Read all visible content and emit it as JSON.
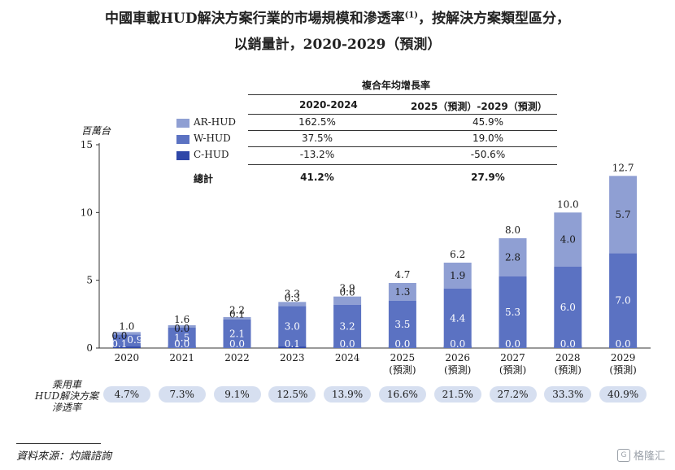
{
  "title_line1": "中國車載HUD解決方案行業的市場規模和滲透率",
  "title_sup": "(1)",
  "title_line1_suffix": "，按解決方案類型區分，",
  "title_line2": "以銷量計，2020-2029（預測）",
  "cagr_table": {
    "header": "複合年均增長率",
    "col1": "2020-2024",
    "col2": "2025（預測）-2029（預測）",
    "rows": [
      {
        "label": "AR-HUD",
        "c1": "162.5%",
        "c2": "45.9%"
      },
      {
        "label": "W-HUD",
        "c1": "37.5%",
        "c2": "19.0%"
      },
      {
        "label": "C-HUD",
        "c1": "-13.2%",
        "c2": "-50.6%"
      },
      {
        "label": "總計",
        "c1": "41.2%",
        "c2": "27.9%"
      }
    ]
  },
  "colors": {
    "ar": "#8f9fd3",
    "w": "#5b72c2",
    "c": "#2f47a8",
    "pill": "#d6dff0"
  },
  "penetration_label": "乘用車\nHUD解決方案\n滲透率",
  "penetration": [
    "4.7%",
    "7.3%",
    "9.1%",
    "12.5%",
    "13.9%",
    "16.6%",
    "21.5%",
    "27.2%",
    "33.3%",
    "40.9%"
  ],
  "source": "資料來源：灼識諮詢",
  "watermark": "格隆汇",
  "chart_data": {
    "type": "bar",
    "stacked": true,
    "ylabel": "百萬台",
    "ylim": [
      0,
      15
    ],
    "yticks": [
      0,
      5,
      10,
      15
    ],
    "categories": [
      "2020",
      "2021",
      "2022",
      "2023",
      "2024",
      "2025",
      "2026",
      "2027",
      "2028",
      "2029"
    ],
    "category_sublabels": [
      "",
      "",
      "",
      "",
      "",
      "(預測)",
      "(預測)",
      "(預測)",
      "(預測)",
      "(預測)"
    ],
    "series": [
      {
        "name": "C-HUD",
        "values": [
          0.1,
          0.0,
          0.0,
          0.1,
          0.0,
          0.0,
          0.0,
          0.0,
          0.0,
          0.0
        ]
      },
      {
        "name": "W-HUD",
        "values": [
          0.9,
          1.5,
          2.1,
          3.0,
          3.2,
          3.5,
          4.4,
          5.3,
          6.0,
          7.0
        ]
      },
      {
        "name": "AR-HUD",
        "values": [
          0.0,
          0.0,
          0.1,
          0.3,
          0.6,
          1.3,
          1.9,
          2.8,
          4.0,
          5.7
        ]
      }
    ],
    "totals": [
      "1.0",
      "1.6",
      "2.2",
      "3.3",
      "3.9",
      "4.7",
      "6.2",
      "8.0",
      "10.0",
      "12.7"
    ],
    "legend_position": "top-left"
  }
}
